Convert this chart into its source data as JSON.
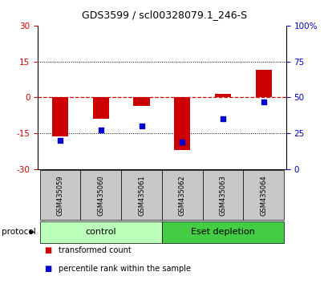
{
  "title": "GDS3599 / scl00328079.1_246-S",
  "samples": [
    "GSM435059",
    "GSM435060",
    "GSM435061",
    "GSM435062",
    "GSM435063",
    "GSM435064"
  ],
  "transformed_count": [
    -16.5,
    -9.0,
    -3.5,
    -22.0,
    1.5,
    11.5
  ],
  "percentile_rank_actual": [
    20,
    27,
    30,
    19,
    35,
    47
  ],
  "ylim_left": [
    -30,
    30
  ],
  "ylim_right": [
    0,
    100
  ],
  "yticks_left": [
    -30,
    -15,
    0,
    15,
    30
  ],
  "yticks_right": [
    0,
    25,
    50,
    75,
    100
  ],
  "yticklabels_left": [
    "-30",
    "-15",
    "0",
    "15",
    "30"
  ],
  "yticklabels_right": [
    "0",
    "25",
    "50",
    "75",
    "100%"
  ],
  "bar_color": "#cc0000",
  "dot_color": "#0000cc",
  "zero_line_color": "#cc0000",
  "grid_color": "#000000",
  "protocol_groups": [
    {
      "label": "control",
      "start": 0,
      "end": 3,
      "color": "#bbffbb"
    },
    {
      "label": "Eset depletion",
      "start": 3,
      "end": 6,
      "color": "#44cc44"
    }
  ],
  "legend_bar_label": "transformed count",
  "legend_dot_label": "percentile rank within the sample",
  "plot_bg_color": "#ffffff",
  "sample_box_color": "#c8c8c8",
  "bar_width": 0.4,
  "dot_size": 18,
  "title_fontsize": 9,
  "tick_fontsize": 7.5,
  "sample_fontsize": 6,
  "proto_fontsize": 8,
  "legend_fontsize": 7
}
